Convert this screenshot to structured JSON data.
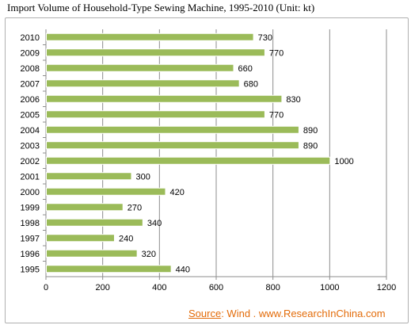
{
  "chart_data": {
    "type": "bar",
    "orientation": "horizontal",
    "title": "Import Volume of Household-Type Sewing Machine, 1995-2010 (Unit: kt)",
    "categories": [
      "2010",
      "2009",
      "2008",
      "2007",
      "2006",
      "2005",
      "2004",
      "2003",
      "2002",
      "2001",
      "2000",
      "1999",
      "1998",
      "1997",
      "1996",
      "1995"
    ],
    "values": [
      730,
      770,
      660,
      680,
      830,
      770,
      890,
      890,
      1000,
      300,
      420,
      270,
      340,
      240,
      320,
      440
    ],
    "data_labels": [
      "730",
      "770",
      "660",
      "680",
      "830",
      "770",
      "890",
      "890",
      "1000",
      "300",
      "420",
      "270",
      "340",
      "240",
      "320",
      "440"
    ],
    "xlim": [
      0,
      1200
    ],
    "x_ticks": [
      "0",
      "200",
      "400",
      "600",
      "800",
      "1000",
      "1200"
    ],
    "x_tick_values": [
      0,
      200,
      400,
      600,
      800,
      1000,
      1200
    ],
    "grid": true,
    "bar_color": "#9bbb59",
    "legend": "none"
  },
  "source": {
    "label": "Source",
    "text": ": Wind . www.ResearchInChina.com"
  }
}
